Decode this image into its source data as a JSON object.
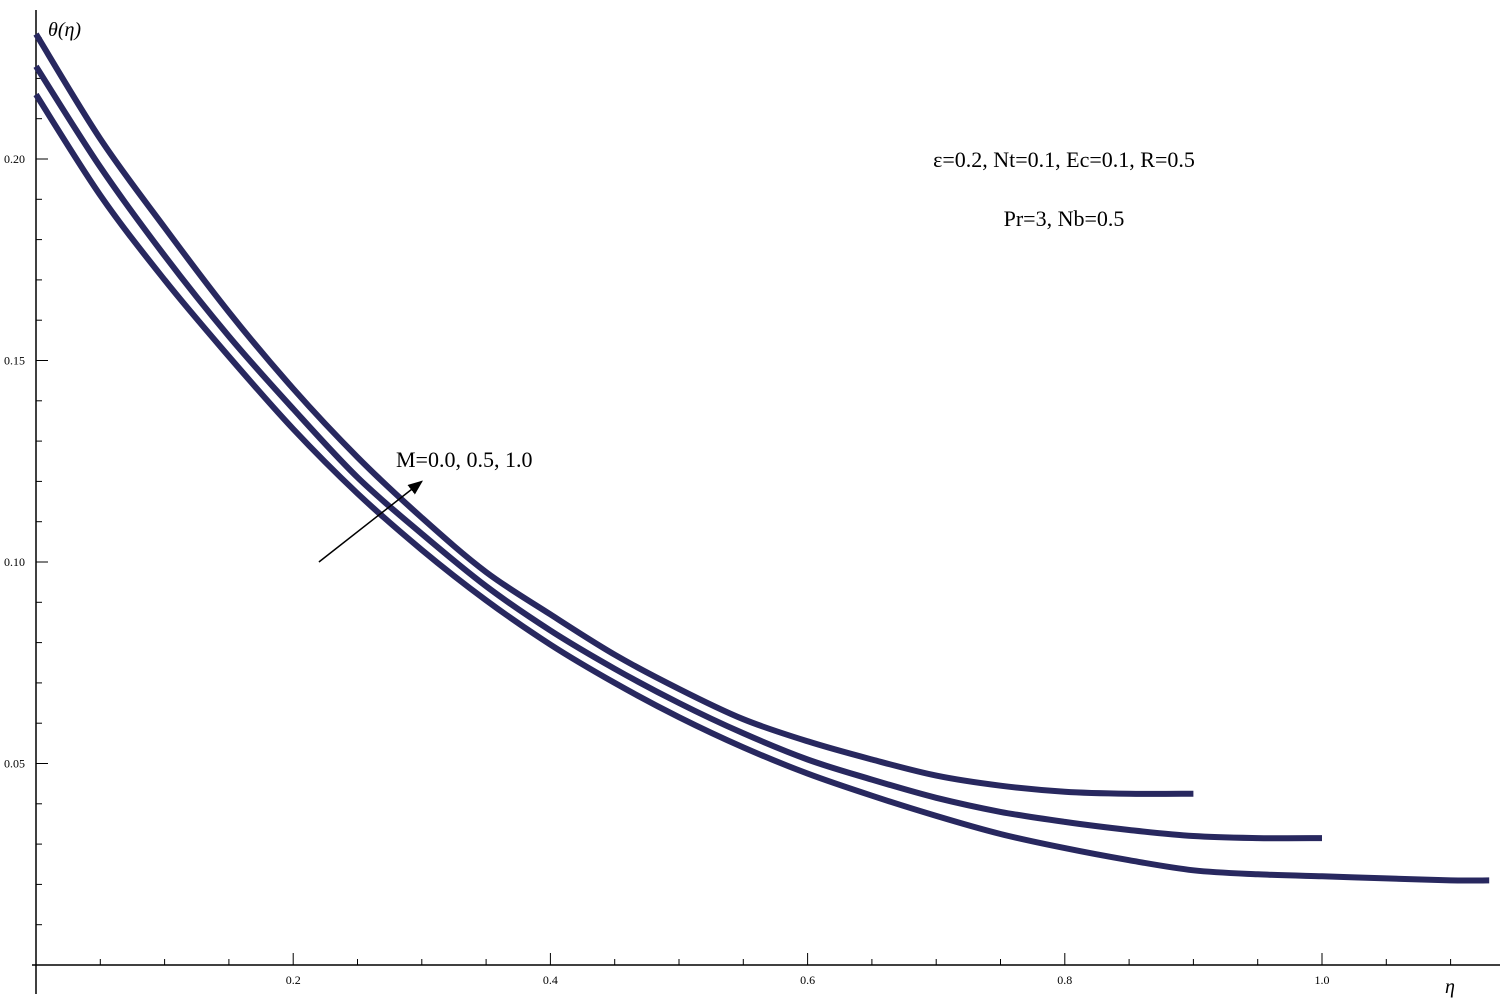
{
  "chart_data": {
    "type": "line",
    "xlabel": "η",
    "ylabel": "θ(η)",
    "xlim": [
      0,
      1.14
    ],
    "ylim": [
      0.0,
      0.232
    ],
    "x_ticks": [
      "0.2",
      "0.4",
      "0.6",
      "0.8",
      "1.0"
    ],
    "y_ticks": [
      "0.05",
      "0.10",
      "0.15",
      "0.20"
    ],
    "grid": false,
    "line_color": "#28285f",
    "series": [
      {
        "x": [
          0.0,
          0.05,
          0.1,
          0.15,
          0.2,
          0.25,
          0.3,
          0.35,
          0.4,
          0.45,
          0.5,
          0.55,
          0.6,
          0.65,
          0.7,
          0.75,
          0.8,
          0.85,
          0.9
        ],
        "y": [
          0.231,
          0.205,
          0.183,
          0.162,
          0.143,
          0.126,
          0.111,
          0.0975,
          0.087,
          0.077,
          0.0685,
          0.061,
          0.0555,
          0.051,
          0.047,
          0.0445,
          0.043,
          0.0425,
          0.0425
        ]
      },
      {
        "x": [
          0.0,
          0.05,
          0.1,
          0.15,
          0.2,
          0.25,
          0.3,
          0.35,
          0.4,
          0.45,
          0.5,
          0.55,
          0.6,
          0.65,
          0.7,
          0.75,
          0.8,
          0.85,
          0.9,
          0.95,
          1.0
        ],
        "y": [
          0.223,
          0.198,
          0.176,
          0.156,
          0.138,
          0.121,
          0.107,
          0.094,
          0.083,
          0.0735,
          0.065,
          0.0575,
          0.051,
          0.046,
          0.0415,
          0.038,
          0.0355,
          0.0335,
          0.032,
          0.0315,
          0.0315
        ]
      },
      {
        "x": [
          0.0,
          0.05,
          0.1,
          0.15,
          0.2,
          0.25,
          0.3,
          0.35,
          0.4,
          0.45,
          0.5,
          0.55,
          0.6,
          0.65,
          0.7,
          0.75,
          0.8,
          0.85,
          0.9,
          0.95,
          1.0,
          1.05,
          1.1,
          1.13
        ],
        "y": [
          0.216,
          0.191,
          0.17,
          0.151,
          0.133,
          0.117,
          0.103,
          0.0905,
          0.0795,
          0.07,
          0.0615,
          0.054,
          0.0475,
          0.042,
          0.037,
          0.0325,
          0.029,
          0.026,
          0.0235,
          0.0225,
          0.022,
          0.0215,
          0.021,
          0.021
        ]
      }
    ],
    "arrow": {
      "from": [
        0.22,
        0.1
      ],
      "to": [
        0.3,
        0.12
      ]
    },
    "annotations": {
      "m_label": "M=0.0, 0.5, 1.0",
      "params_line1": "ε=0.2, Nt=0.1, Ec=0.1, R=0.5",
      "params_line2": "Pr=3, Nb=0.5"
    }
  }
}
